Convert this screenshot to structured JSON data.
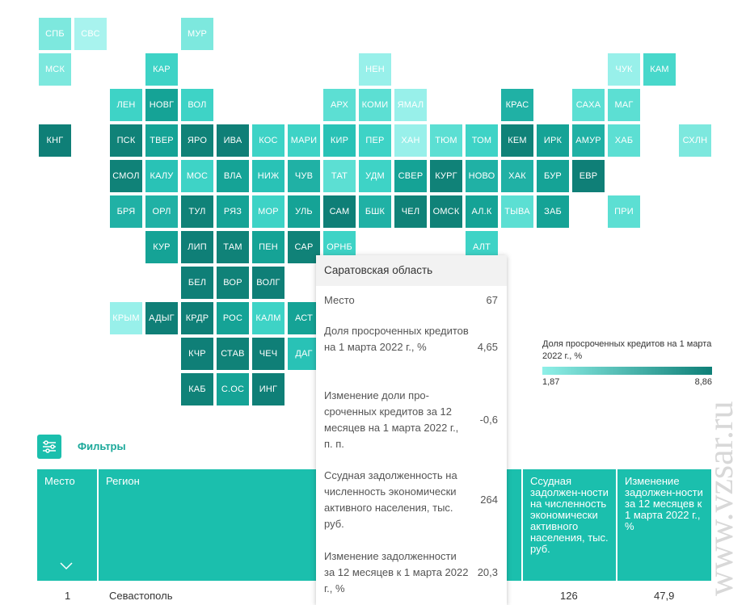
{
  "map": {
    "tiles": [
      {
        "code": "СПБ",
        "color": "#7de8de"
      },
      {
        "code": "СВС",
        "color": "#a8f3ee"
      },
      {
        "code": "МУР",
        "color": "#7de8de"
      },
      {
        "code": "МСК",
        "color": "#7de8de"
      },
      {
        "code": "КАР",
        "color": "#3ed3c6"
      },
      {
        "code": "НЕН",
        "color": "#98f0ea"
      },
      {
        "code": "ЧУК",
        "color": "#98f0ea"
      },
      {
        "code": "КАМ",
        "color": "#48d8cb"
      },
      {
        "code": "ЛЕН",
        "color": "#3ed3c6"
      },
      {
        "code": "НОВГ",
        "color": "#15a396"
      },
      {
        "code": "ВОЛ",
        "color": "#3ed3c6"
      },
      {
        "code": "АРХ",
        "color": "#5cdfd3"
      },
      {
        "code": "КОМИ",
        "color": "#5cdfd3"
      },
      {
        "code": "ЯМАЛ",
        "color": "#98f0ea"
      },
      {
        "code": "КРАС",
        "color": "#20b1a5"
      },
      {
        "code": "САХА",
        "color": "#5cdfd3"
      },
      {
        "code": "МАГ",
        "color": "#5cdfd3"
      },
      {
        "code": "КНГ",
        "color": "#0f7f77"
      },
      {
        "code": "ПСК",
        "color": "#108278"
      },
      {
        "code": "ТВЕР",
        "color": "#15a396"
      },
      {
        "code": "ЯРО",
        "color": "#108278"
      },
      {
        "code": "ИВА",
        "color": "#0f7f77"
      },
      {
        "code": "КОС",
        "color": "#3ed3c6"
      },
      {
        "code": "МАРИ",
        "color": "#3ed3c6"
      },
      {
        "code": "КИР",
        "color": "#29c2b6"
      },
      {
        "code": "ПЕР",
        "color": "#3ed3c6"
      },
      {
        "code": "ХАН",
        "color": "#98f0ea"
      },
      {
        "code": "ТЮМ",
        "color": "#5cdfd3"
      },
      {
        "code": "ТОМ",
        "color": "#3ed3c6"
      },
      {
        "code": "КЕМ",
        "color": "#108278"
      },
      {
        "code": "ИРК",
        "color": "#15a396"
      },
      {
        "code": "АМУР",
        "color": "#20b1a5"
      },
      {
        "code": "ХАБ",
        "color": "#5cdfd3"
      },
      {
        "code": "СХЛН",
        "color": "#7de8de"
      },
      {
        "code": "СМОЛ",
        "color": "#108278"
      },
      {
        "code": "КАЛУ",
        "color": "#29c2b6"
      },
      {
        "code": "МОС",
        "color": "#3ed3c6"
      },
      {
        "code": "ВЛА",
        "color": "#15a396"
      },
      {
        "code": "НИЖ",
        "color": "#29c2b6"
      },
      {
        "code": "ЧУВ",
        "color": "#20b1a5"
      },
      {
        "code": "ТАТ",
        "color": "#5cdfd3"
      },
      {
        "code": "УДМ",
        "color": "#3ed3c6"
      },
      {
        "code": "СВЕР",
        "color": "#15a396"
      },
      {
        "code": "КУРГ",
        "color": "#108278"
      },
      {
        "code": "НОВО",
        "color": "#20b1a5"
      },
      {
        "code": "ХАК",
        "color": "#20b1a5"
      },
      {
        "code": "БУР",
        "color": "#15a396"
      },
      {
        "code": "ЕВР",
        "color": "#0f7f77"
      },
      {
        "code": "БРЯ",
        "color": "#20b1a5"
      },
      {
        "code": "ОРЛ",
        "color": "#20b1a5"
      },
      {
        "code": "ТУЛ",
        "color": "#108278"
      },
      {
        "code": "РЯЗ",
        "color": "#15a396"
      },
      {
        "code": "МОР",
        "color": "#3ed3c6"
      },
      {
        "code": "УЛЬ",
        "color": "#15a396"
      },
      {
        "code": "САМ",
        "color": "#0f7f77"
      },
      {
        "code": "БШК",
        "color": "#20b1a5"
      },
      {
        "code": "ЧЕЛ",
        "color": "#108278"
      },
      {
        "code": "ОМСК",
        "color": "#108278"
      },
      {
        "code": "АЛ.К",
        "color": "#15a396"
      },
      {
        "code": "ТЫВА",
        "color": "#5cdfd3"
      },
      {
        "code": "ЗАБ",
        "color": "#15a396"
      },
      {
        "code": "ПРИ",
        "color": "#5cdfd3"
      },
      {
        "code": "КУР",
        "color": "#15a396"
      },
      {
        "code": "ЛИП",
        "color": "#0f7f77"
      },
      {
        "code": "ТАМ",
        "color": "#108278"
      },
      {
        "code": "ПЕН",
        "color": "#15a396"
      },
      {
        "code": "САР",
        "color": "#108278"
      },
      {
        "code": "ОРНБ",
        "color": "#3ed3c6"
      },
      {
        "code": "АЛТ",
        "color": "#3ed3c6"
      },
      {
        "code": "БЕЛ",
        "color": "#0f7f77"
      },
      {
        "code": "ВОР",
        "color": "#108278"
      },
      {
        "code": "ВОЛГ",
        "color": "#0f7f77"
      },
      {
        "code": "КРЫМ",
        "color": "#98f0ea"
      },
      {
        "code": "АДЫГ",
        "color": "#0f7f77"
      },
      {
        "code": "КРДР",
        "color": "#0f7f77"
      },
      {
        "code": "РОС",
        "color": "#15a396"
      },
      {
        "code": "КАЛМ",
        "color": "#3ed3c6"
      },
      {
        "code": "АСТ",
        "color": "#15a396"
      },
      {
        "code": "КЧР",
        "color": "#0f7f77"
      },
      {
        "code": "СТАВ",
        "color": "#108278"
      },
      {
        "code": "ЧЕЧ",
        "color": "#0f7f77"
      },
      {
        "code": "ДАГ",
        "color": "#29c2b6"
      },
      {
        "code": "КАБ",
        "color": "#108278"
      },
      {
        "code": "С.ОС",
        "color": "#15a396"
      },
      {
        "code": "ИНГ",
        "color": "#0f7f77"
      }
    ]
  },
  "tooltip": {
    "title": "Саратовская область",
    "rows": [
      {
        "label": "Место",
        "value": "67"
      },
      {
        "label": "Доля просроченных кредитов на 1 марта 2022 г., %",
        "value": "4,65"
      },
      {
        "label": "Изменение доли про-сроченных кредитов за 12 месяцев на 1 марта 2022 г., п. п.",
        "value": "-0,6"
      },
      {
        "label": "Ссудная задолженность на численность экономически активного населения, тыс. руб.",
        "value": "264"
      },
      {
        "label": "Изменение задолженности за 12 месяцев к 1 марта 2022 г., %",
        "value": "20,3"
      }
    ]
  },
  "legend": {
    "title": "Доля просроченных кредитов на 1 марта 2022 г., %",
    "min": "1,87",
    "max": "8,86",
    "color_low": "#8ff0e8",
    "color_high": "#0e7f77"
  },
  "filters": {
    "label": "Фильтры",
    "icon": "sliders-icon"
  },
  "table": {
    "headers": {
      "place": "Место",
      "region": "Регион",
      "debt": "Ссудная задолжен-ности на численность экономически активного населения, тыс. руб.",
      "change": "Изменение задолжен-ности за 12 месяцев к 1 марта 2022 г., %"
    },
    "row1": {
      "place": "1",
      "region": "Севастополь",
      "debt": "126",
      "change": "47,9"
    }
  },
  "watermark": "www.vzsar.ru",
  "accent_color": "#1bbfad"
}
